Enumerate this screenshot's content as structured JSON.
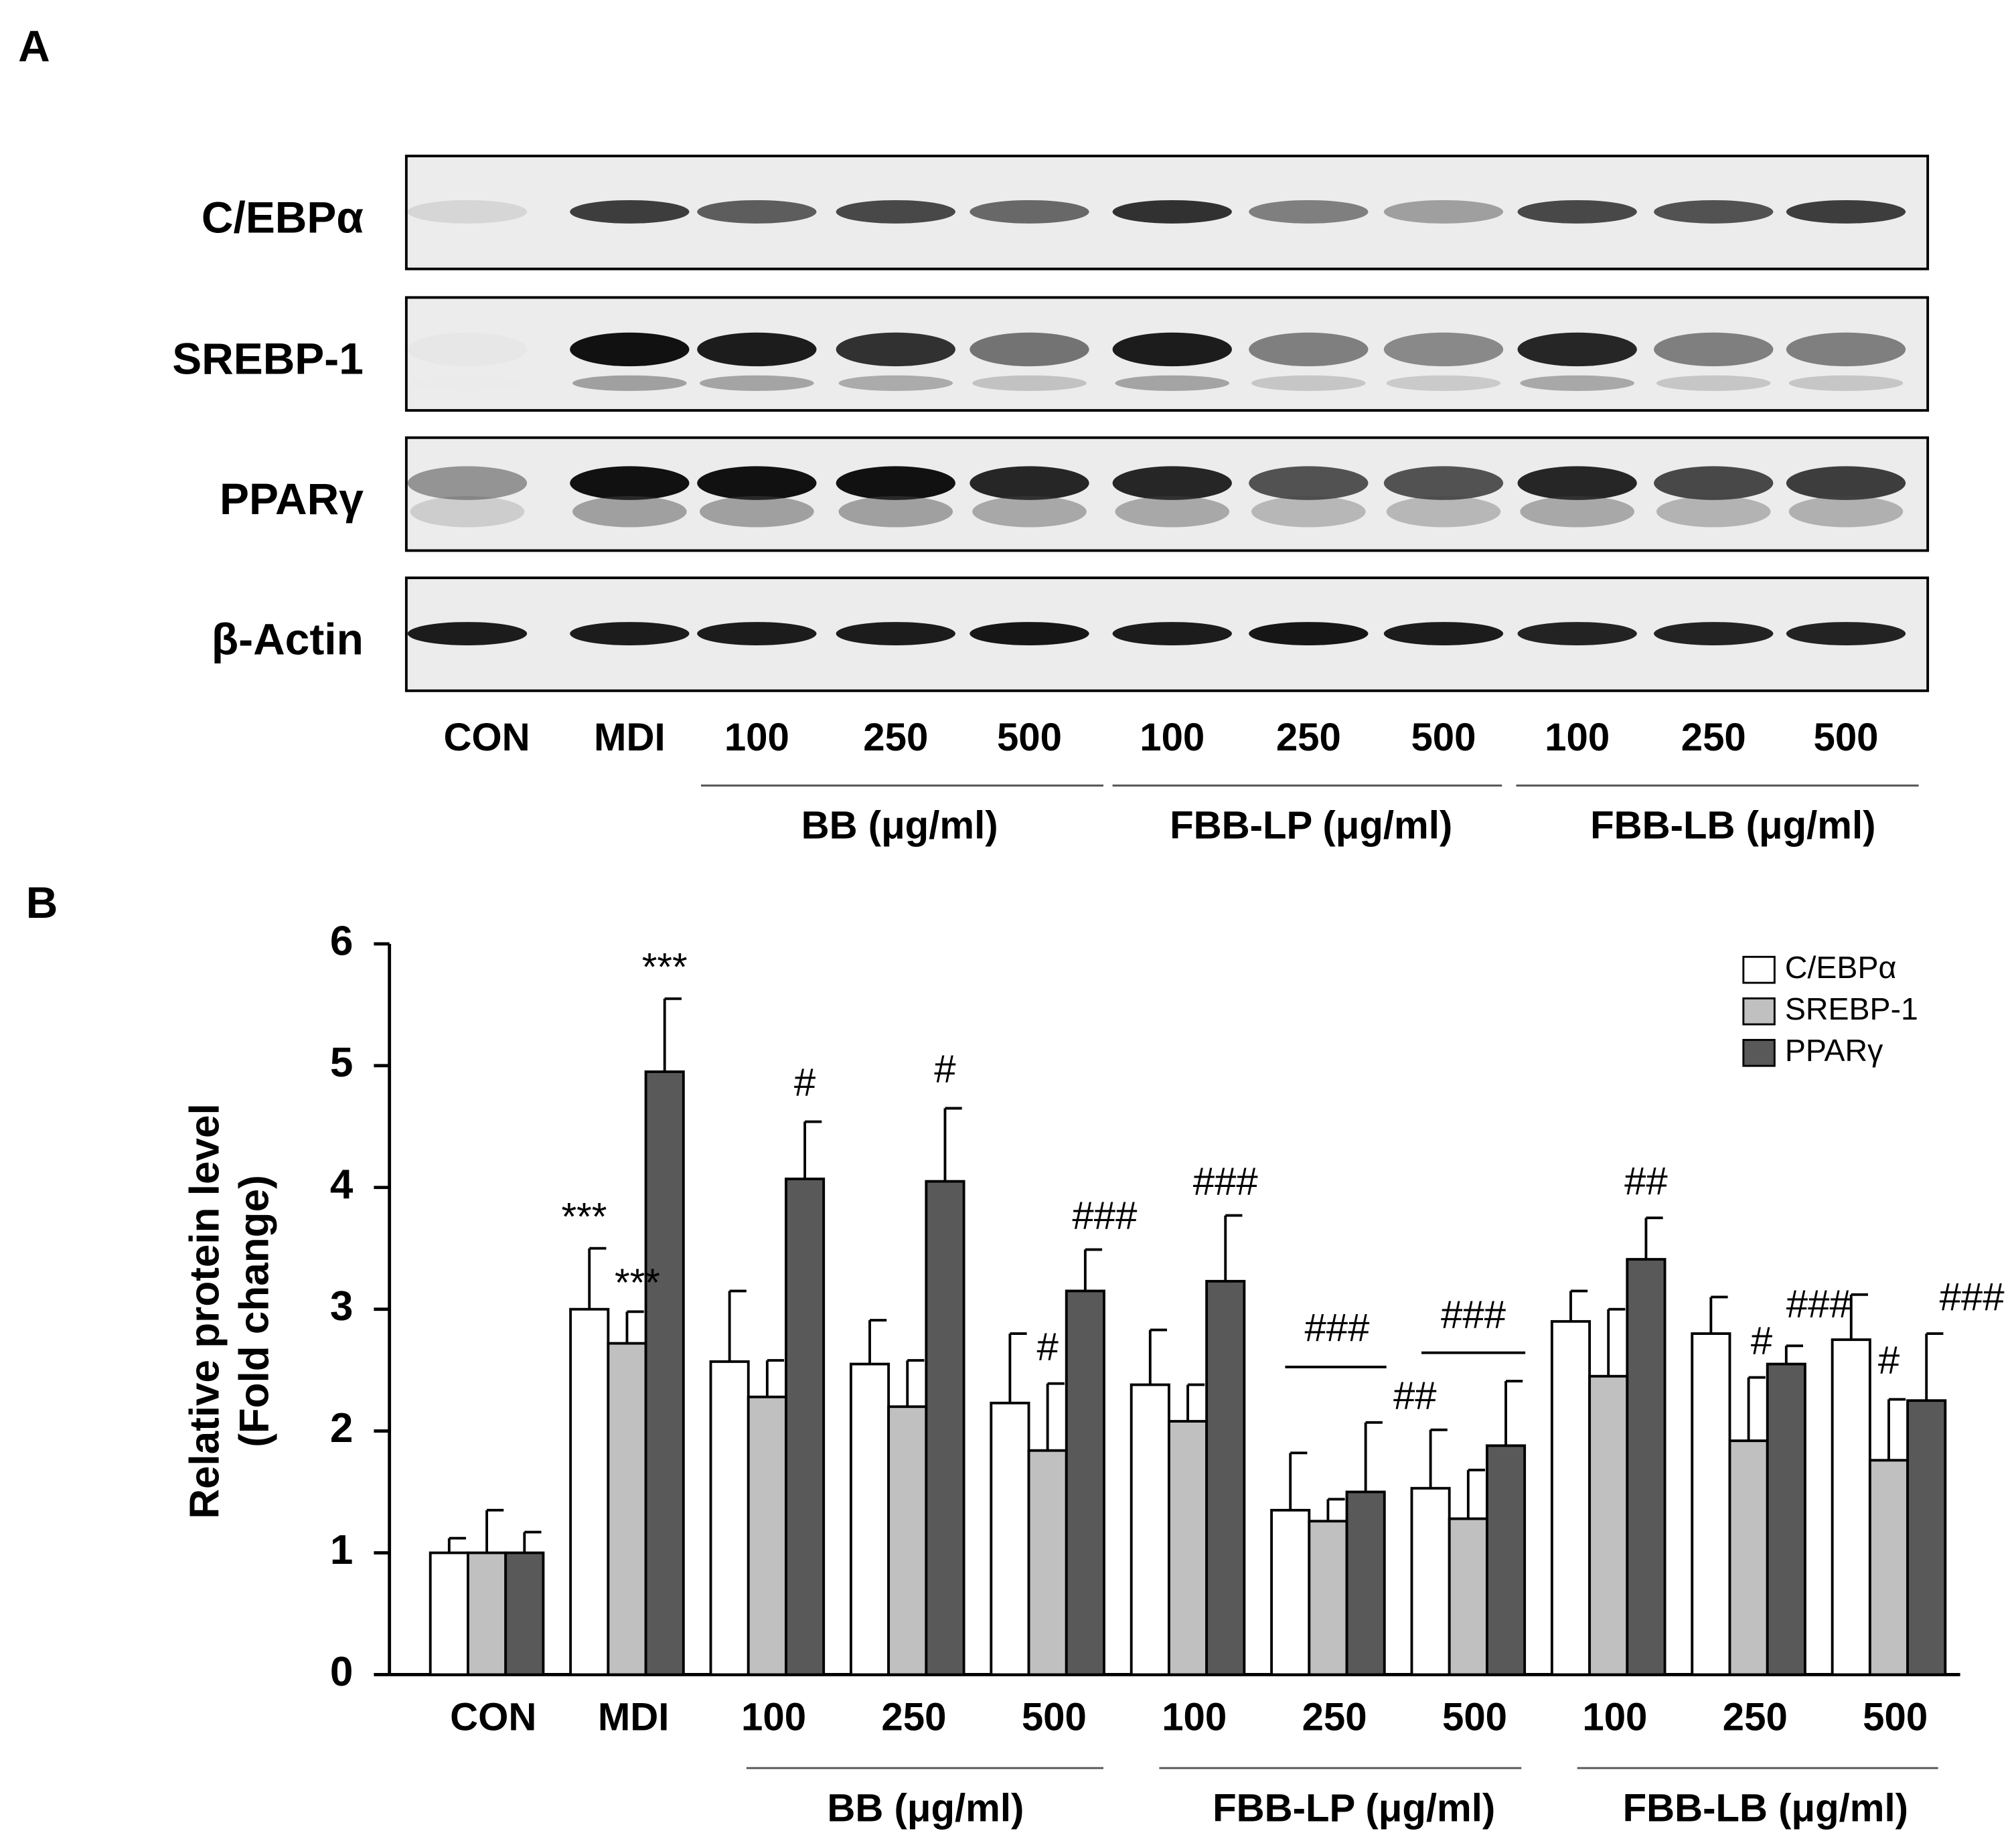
{
  "panel_a": {
    "label": "A",
    "proteins": [
      "C/EBPα",
      "SREBP-1",
      "PPARγ",
      "β-Actin"
    ],
    "lanes": [
      "CON",
      "MDI",
      "100",
      "250",
      "500",
      "100",
      "250",
      "500",
      "100",
      "250",
      "500"
    ],
    "groups": [
      "BB (μg/ml)",
      "FBB-LP (μg/ml)",
      "FBB-LB (μg/ml)"
    ]
  },
  "chart_data": {
    "type": "bar",
    "panel_label": "B",
    "ylabel": [
      "Relative protein level",
      "(Fold change)"
    ],
    "categories": [
      "CON",
      "MDI",
      "100",
      "250",
      "500",
      "100",
      "250",
      "500",
      "100",
      "250",
      "500"
    ],
    "group_labels": [
      "BB (μg/ml)",
      "FBB-LP (μg/ml)",
      "FBB-LB (μg/ml)"
    ],
    "ylim": [
      0,
      6
    ],
    "yticks": [
      0,
      1,
      2,
      3,
      4,
      5,
      6
    ],
    "legend": "top-right",
    "series": [
      {
        "name": "C/EBPα",
        "color": "#ffffff",
        "values": [
          1.0,
          3.0,
          2.57,
          2.55,
          2.23,
          2.38,
          1.35,
          1.53,
          2.9,
          2.8,
          2.75
        ],
        "errors": [
          0.12,
          0.5,
          0.58,
          0.36,
          0.57,
          0.45,
          0.47,
          0.48,
          0.25,
          0.3,
          0.37
        ]
      },
      {
        "name": "SREBP-1",
        "color": "#c0c0c0",
        "values": [
          1.0,
          2.72,
          2.28,
          2.2,
          1.84,
          2.08,
          1.26,
          1.28,
          2.45,
          1.92,
          1.76
        ],
        "errors": [
          0.35,
          0.26,
          0.3,
          0.38,
          0.55,
          0.3,
          0.18,
          0.4,
          0.55,
          0.52,
          0.5
        ]
      },
      {
        "name": "PPARγ",
        "color": "#595959",
        "values": [
          1.0,
          4.95,
          4.07,
          4.05,
          3.15,
          3.23,
          1.5,
          1.88,
          3.41,
          2.55,
          2.25
        ],
        "errors": [
          0.17,
          0.6,
          0.47,
          0.6,
          0.34,
          0.54,
          0.57,
          0.53,
          0.34,
          0.15,
          0.55
        ]
      }
    ],
    "annotations": [
      "***",
      "***",
      "***",
      "#",
      "#",
      "###",
      "#",
      "###",
      "###",
      "###",
      "##",
      "##",
      "###",
      "#",
      "###",
      "#"
    ]
  }
}
